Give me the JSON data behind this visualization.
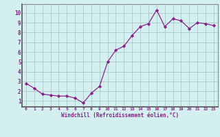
{
  "x": [
    0,
    1,
    2,
    3,
    4,
    5,
    6,
    7,
    8,
    9,
    10,
    11,
    12,
    13,
    14,
    15,
    16,
    17,
    18,
    19,
    20,
    21,
    22,
    23
  ],
  "y": [
    2.8,
    2.3,
    1.7,
    1.6,
    1.5,
    1.5,
    1.3,
    0.8,
    1.8,
    2.5,
    5.0,
    6.2,
    6.6,
    7.7,
    8.6,
    8.9,
    10.3,
    8.6,
    9.4,
    9.2,
    8.4,
    9.0,
    8.9,
    8.7
  ],
  "line_color": "#882288",
  "marker": "D",
  "bg_color": "#d4efef",
  "grid_color": "#b0cccc",
  "xlabel": "Windchill (Refroidissement éolien,°C)",
  "ylabel_ticks": [
    1,
    2,
    3,
    4,
    5,
    6,
    7,
    8,
    9,
    10
  ],
  "xlim": [
    -0.5,
    23.5
  ],
  "ylim": [
    0.4,
    10.9
  ],
  "tick_color": "#882288",
  "label_color": "#882288",
  "font": "monospace",
  "border_color": "#888888"
}
